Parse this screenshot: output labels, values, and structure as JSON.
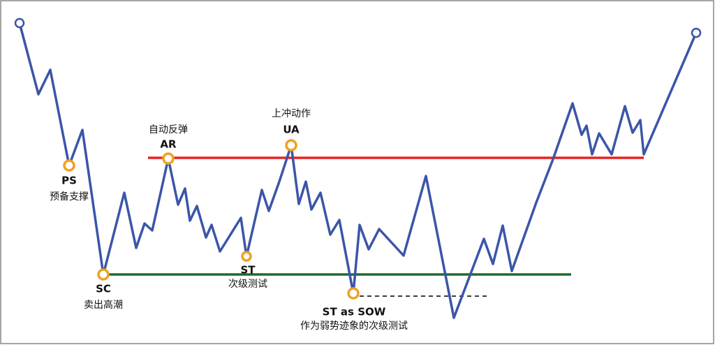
{
  "nodes": [
    {
      "label": "PS",
      "description": "预备支撑"
    },
    {
      "label": "SC",
      "description": "卖出高潮"
    },
    {
      "label": "AR",
      "description": "自动反弹"
    },
    {
      "label": "ST",
      "description": "次级测试"
    },
    {
      "label": "UA",
      "description": "上冲动作"
    },
    {
      "label": "ST as SOW",
      "description": "作为弱势迹象的次级测试"
    }
  ]
}
